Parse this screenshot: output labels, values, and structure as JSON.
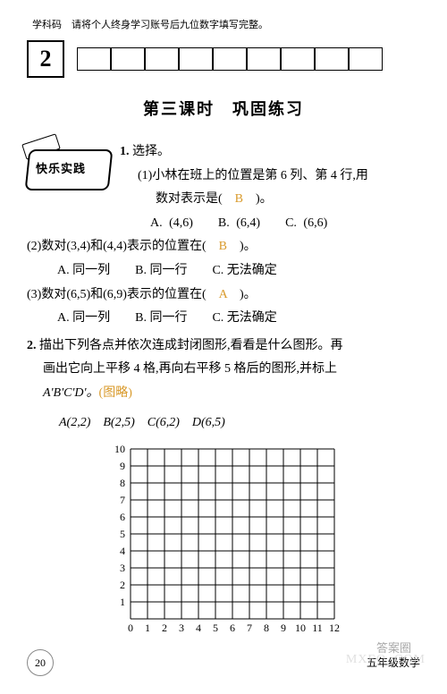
{
  "header": {
    "note": "学科码　请将个人终身学习账号后九位数字填写完整。",
    "big_box": "2",
    "title": "第三课时　巩固练习"
  },
  "badge": {
    "label": "快乐实践"
  },
  "q1": {
    "number": "1.",
    "stem": "选择。",
    "sub1_line1": "(1)小林在班上的位置是第 6 列、第 4 行,用",
    "sub1_line2": "数对表示是(　",
    "sub1_ans": "B",
    "sub1_line2_end": "　)。",
    "sub1_opts": "A. (4,6)　　B. (6,4)　　C. (6,6)",
    "sub2": "(2)数对(3,4)和(4,4)表示的位置在(　",
    "sub2_ans": "B",
    "sub2_end": "　)。",
    "sub2_opts": "A. 同一列　　B. 同一行　　C. 无法确定",
    "sub3": "(3)数对(6,5)和(6,9)表示的位置在(　",
    "sub3_ans": "A",
    "sub3_end": "　)。",
    "sub3_opts": "A. 同一列　　B. 同一行　　C. 无法确定"
  },
  "q2": {
    "number": "2.",
    "line1": "描出下列各点并依次连成封闭图形,看看是什么图形。再",
    "line2": "画出它向上平移 4 格,再向右平移 5 格后的图形,并标上",
    "line3_prefix": "A'B'C'D'。",
    "line3_note": "(图略)",
    "points": "A(2,2)　B(2,5)　C(6,2)　D(6,5)"
  },
  "grid": {
    "x_min": 0,
    "x_max": 12,
    "y_min": 0,
    "y_max": 10,
    "cell": 19,
    "axis_color": "#000000",
    "grid_color": "#000000",
    "line_width": 1,
    "font_size": 12
  },
  "footer": {
    "page": "20",
    "subject": "五年级数学"
  },
  "watermark": "MXEO .COM",
  "ans_mark": "答案圈"
}
